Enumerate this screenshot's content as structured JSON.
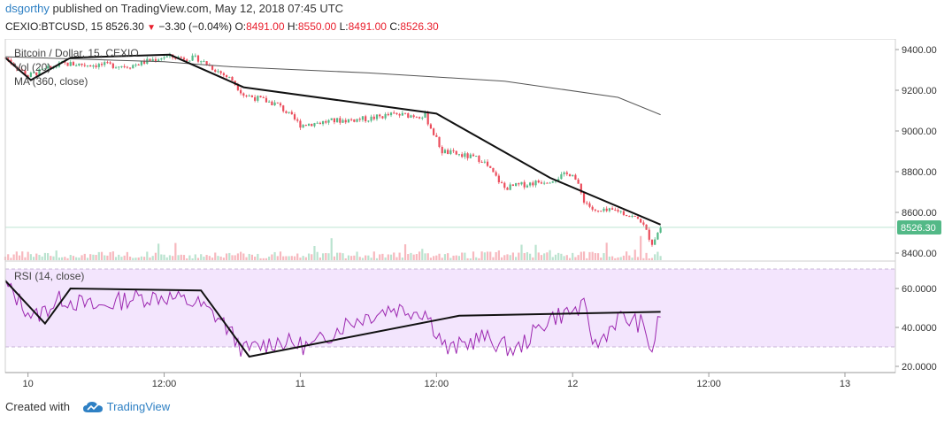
{
  "header": {
    "author": "dsgorthy",
    "published_text": " published on TradingView.com, May 12, 2018 07:45 UTC",
    "symbol": "CEXIO:BTCUSD, 15",
    "last_price": "8526.30",
    "change": "−3.30 (−0.04%)",
    "open_label": "O:",
    "open": "8491.00",
    "high_label": "H:",
    "high": "8550.00",
    "low_label": "L:",
    "low": "8491.00",
    "close_label": "C:",
    "close": "8526.30",
    "down_arrow_icon": "triangle-down-icon"
  },
  "footer": {
    "created_with": "Created with",
    "brand": "TradingView",
    "logo_icon": "cloud-logo-icon"
  },
  "colors": {
    "up": "#53b987",
    "down": "#eb4d5c",
    "trend": "#111111",
    "ma": "#555555",
    "rsi_line": "#9c27b0",
    "rsi_band": "#f3e5fd",
    "price_tag": "#53b987"
  },
  "chart_data": [
    {
      "type": "candlestick",
      "legend": [
        "Bitcoin / Dollar, 15, CEXIO",
        "Vol (20)",
        "MA (360, close)"
      ],
      "y_ticks": [
        "9400.00",
        "9200.00",
        "9000.00",
        "8800.00",
        "8600.00",
        "8400.00"
      ],
      "ylim": [
        8360,
        9450
      ],
      "x_ticks": [
        "10",
        "12:00",
        "11",
        "12:00",
        "12",
        "12:00",
        "13"
      ],
      "last_price_label": "8526.30",
      "trendlines": [
        {
          "points": [
            [
              "2018-05-09 22:00",
              9360
            ],
            [
              "2018-05-10 00:15",
              9250
            ],
            [
              "2018-05-10 03:45",
              9360
            ],
            [
              "2018-05-10 12:30",
              9375
            ],
            [
              "2018-05-10 19:00",
              9215
            ],
            [
              "2018-05-11 12:00",
              9085
            ],
            [
              "2018-05-11 22:00",
              8770
            ],
            [
              "2018-05-12 07:45",
              8540
            ]
          ]
        }
      ],
      "ma_360_path": [
        [
          "2018-05-09 22:00",
          9365
        ],
        [
          "2018-05-10 12:00",
          9340
        ],
        [
          "2018-05-10 18:00",
          9315
        ],
        [
          "2018-05-11 06:00",
          9285
        ],
        [
          "2018-05-11 18:00",
          9245
        ],
        [
          "2018-05-12 04:00",
          9165
        ],
        [
          "2018-05-12 07:45",
          9080
        ]
      ],
      "close_path": [
        [
          "2018-05-09 22:00",
          9360
        ],
        [
          "2018-05-10 00:00",
          9270
        ],
        [
          "2018-05-10 03:00",
          9330
        ],
        [
          "2018-05-10 09:00",
          9320
        ],
        [
          "2018-05-10 12:00",
          9365
        ],
        [
          "2018-05-10 15:00",
          9355
        ],
        [
          "2018-05-10 18:00",
          9250
        ],
        [
          "2018-05-10 19:00",
          9180
        ],
        [
          "2018-05-10 22:00",
          9130
        ],
        [
          "2018-05-11 00:00",
          9030
        ],
        [
          "2018-05-11 03:00",
          9050
        ],
        [
          "2018-05-11 06:00",
          9060
        ],
        [
          "2018-05-11 08:00",
          9080
        ],
        [
          "2018-05-11 11:00",
          9075
        ],
        [
          "2018-05-11 12:30",
          8900
        ],
        [
          "2018-05-11 16:00",
          8860
        ],
        [
          "2018-05-11 18:00",
          8720
        ],
        [
          "2018-05-11 20:00",
          8740
        ],
        [
          "2018-05-11 22:00",
          8760
        ],
        [
          "2018-05-12 00:00",
          8795
        ],
        [
          "2018-05-12 01:00",
          8660
        ],
        [
          "2018-05-12 02:00",
          8600
        ],
        [
          "2018-05-12 04:00",
          8610
        ],
        [
          "2018-05-12 06:00",
          8560
        ],
        [
          "2018-05-12 07:00",
          8450
        ],
        [
          "2018-05-12 07:45",
          8526
        ]
      ]
    },
    {
      "type": "line",
      "legend": [
        "RSI (14, close)"
      ],
      "y_ticks": [
        "60.0000",
        "40.0000",
        "20.0000"
      ],
      "ylim": [
        15,
        70
      ],
      "band": [
        30,
        70
      ],
      "trendlines": [
        {
          "points": [
            [
              "2018-05-09 22:00",
              64
            ],
            [
              "2018-05-10 01:30",
              42
            ],
            [
              "2018-05-10 03:45",
              60
            ],
            [
              "2018-05-10 15:15",
              59
            ],
            [
              "2018-05-10 19:30",
              25
            ],
            [
              "2018-05-11 14:00",
              46
            ],
            [
              "2018-05-12 07:45",
              48
            ]
          ]
        }
      ],
      "rsi_path": [
        [
          "2018-05-09 22:00",
          62
        ],
        [
          "2018-05-10 00:30",
          45
        ],
        [
          "2018-05-10 03:00",
          55
        ],
        [
          "2018-05-10 06:00",
          50
        ],
        [
          "2018-05-10 09:00",
          55
        ],
        [
          "2018-05-10 12:00",
          56
        ],
        [
          "2018-05-10 15:00",
          52
        ],
        [
          "2018-05-10 17:00",
          44
        ],
        [
          "2018-05-10 19:00",
          28
        ],
        [
          "2018-05-10 22:00",
          33
        ],
        [
          "2018-05-11 01:00",
          30
        ],
        [
          "2018-05-11 04:00",
          42
        ],
        [
          "2018-05-11 08:00",
          50
        ],
        [
          "2018-05-11 11:00",
          48
        ],
        [
          "2018-05-11 13:00",
          28
        ],
        [
          "2018-05-11 16:00",
          35
        ],
        [
          "2018-05-11 19:00",
          28
        ],
        [
          "2018-05-11 22:00",
          45
        ],
        [
          "2018-05-12 01:00",
          50
        ],
        [
          "2018-05-12 02:00",
          30
        ],
        [
          "2018-05-12 04:00",
          45
        ],
        [
          "2018-05-12 06:00",
          42
        ],
        [
          "2018-05-12 07:00",
          28
        ],
        [
          "2018-05-12 07:45",
          48
        ]
      ]
    }
  ]
}
